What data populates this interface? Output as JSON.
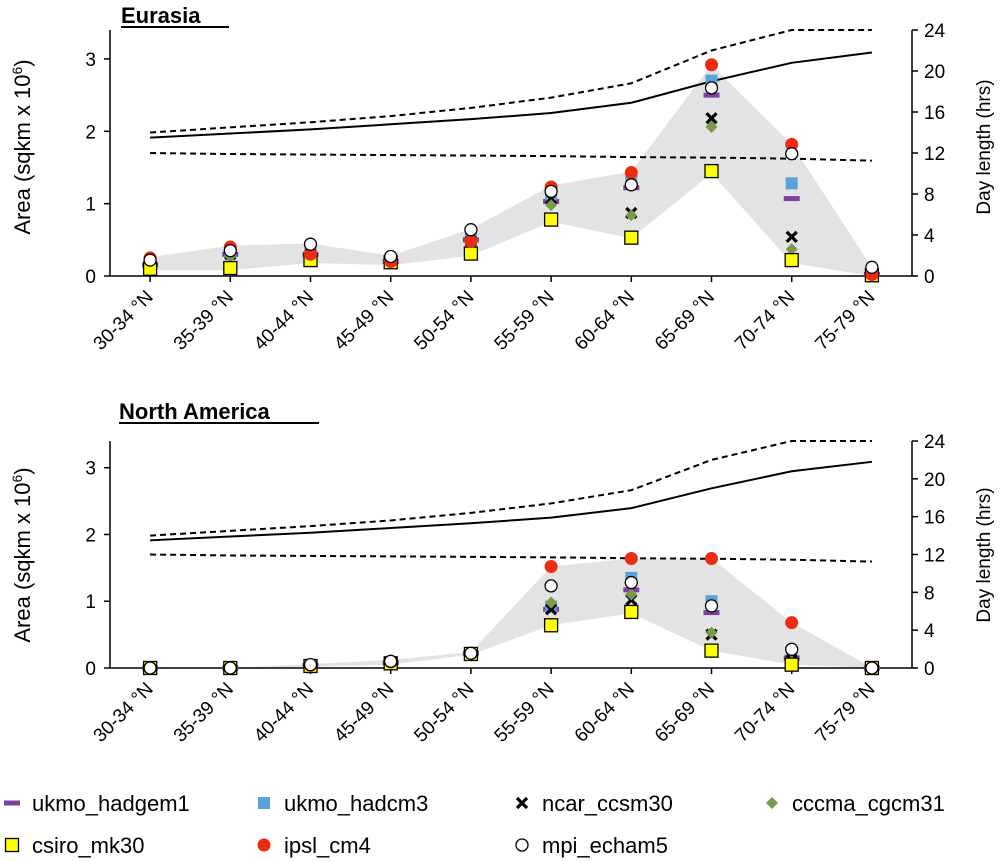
{
  "chart_data": [
    {
      "type": "scatter",
      "title": "Eurasia",
      "ylabel": "Area (sqkm x 10^6)",
      "ylabel_base": "Area (sqkm x 10",
      "ylabel_exp": "6",
      "ylabel_close": ")",
      "y2label": "Day length (hrs)",
      "ylim": [
        0,
        3.4
      ],
      "y2lim": [
        0,
        24
      ],
      "yticks": [
        "0",
        "1",
        "2",
        "3"
      ],
      "y2ticks": [
        "0",
        "4",
        "8",
        "12",
        "16",
        "20",
        "24"
      ],
      "categories": [
        "30-34 °N",
        "35-39 °N",
        "40-44 °N",
        "45-49 °N",
        "50-54 °N",
        "55-59 °N",
        "60-64 °N",
        "65-69 °N",
        "70-74 °N",
        "75-79 °N"
      ],
      "band": {
        "lower": [
          0.08,
          0.08,
          0.18,
          0.15,
          0.28,
          0.75,
          0.52,
          1.42,
          0.18,
          0.0
        ],
        "upper": [
          0.26,
          0.42,
          0.45,
          0.28,
          0.65,
          1.25,
          1.44,
          2.92,
          1.82,
          0.12
        ]
      },
      "series": [
        {
          "name": "ukmo_hadgem1",
          "marker": "dash",
          "color": "#7b3fa0",
          "values": [
            0.15,
            0.3,
            0.3,
            0.2,
            0.5,
            1.03,
            1.22,
            2.5,
            1.07,
            0.02
          ]
        },
        {
          "name": "ukmo_hadcm3",
          "marker": "square",
          "color": "#5aa0dc",
          "values": [
            0.2,
            0.33,
            0.35,
            0.22,
            0.6,
            1.13,
            1.32,
            2.7,
            1.28,
            0.03
          ]
        },
        {
          "name": "ncar_ccsm30",
          "marker": "x",
          "color": "#000000",
          "values": [
            0.15,
            0.3,
            0.3,
            0.2,
            0.48,
            1.07,
            0.87,
            2.18,
            0.54,
            0.02
          ]
        },
        {
          "name": "cccma_cgcm31",
          "marker": "diamond",
          "color": "#7a9a4a",
          "values": [
            0.14,
            0.27,
            0.28,
            0.2,
            0.44,
            0.98,
            0.84,
            2.06,
            0.37,
            0.02
          ]
        },
        {
          "name": "csiro_mk30",
          "marker": "square-outline",
          "color": "#ffff00",
          "values": [
            0.1,
            0.11,
            0.22,
            0.19,
            0.31,
            0.78,
            0.53,
            1.45,
            0.22,
            0.01
          ]
        },
        {
          "name": "ipsl_cm4",
          "marker": "dot",
          "color": "#ee2b10",
          "values": [
            0.25,
            0.4,
            0.3,
            0.2,
            0.48,
            1.23,
            1.43,
            2.92,
            1.82,
            0.02
          ]
        },
        {
          "name": "mpi_echam5",
          "marker": "circle-open",
          "color": "#ffffff",
          "values": [
            0.22,
            0.35,
            0.44,
            0.27,
            0.64,
            1.17,
            1.26,
            2.6,
            1.69,
            0.12
          ]
        }
      ],
      "day_length": {
        "upper_dashed": [
          14.0,
          14.5,
          15.0,
          15.6,
          16.4,
          17.4,
          18.8,
          22.0,
          24.0,
          24.0
        ],
        "solid": [
          13.5,
          13.9,
          14.3,
          14.8,
          15.3,
          15.9,
          16.9,
          19.0,
          20.8,
          21.8
        ],
        "lower_dashed": [
          12.0,
          11.9,
          11.85,
          11.8,
          11.75,
          11.7,
          11.6,
          11.55,
          11.45,
          11.25
        ]
      }
    },
    {
      "type": "scatter",
      "title": "North America",
      "ylabel": "Area (sqkm x 10^6)",
      "ylabel_base": "Area (sqkm x 10",
      "ylabel_exp": "6",
      "ylabel_close": ")",
      "y2label": "Day length (hrs)",
      "ylim": [
        0,
        3.4
      ],
      "y2lim": [
        0,
        24
      ],
      "yticks": [
        "0",
        "1",
        "2",
        "3"
      ],
      "y2ticks": [
        "0",
        "4",
        "8",
        "12",
        "16",
        "20",
        "24"
      ],
      "categories": [
        "30-34 °N",
        "35-39 °N",
        "40-44 °N",
        "45-49 °N",
        "50-54 °N",
        "55-59 °N",
        "60-64 °N",
        "65-69 °N",
        "70-74 °N",
        "75-79 °N"
      ],
      "band": {
        "lower": [
          0.0,
          0.0,
          0.02,
          0.05,
          0.2,
          0.64,
          0.82,
          0.26,
          0.05,
          0.0
        ],
        "upper": [
          0.0,
          0.0,
          0.06,
          0.12,
          0.24,
          1.52,
          1.64,
          1.64,
          0.68,
          0.01
        ]
      },
      "series": [
        {
          "name": "ukmo_hadgem1",
          "marker": "dash",
          "color": "#7b3fa0",
          "values": [
            0.0,
            0.0,
            0.04,
            0.08,
            0.22,
            0.88,
            1.17,
            0.83,
            0.15,
            0.0
          ]
        },
        {
          "name": "ukmo_hadcm3",
          "marker": "square",
          "color": "#5aa0dc",
          "values": [
            0.0,
            0.0,
            0.04,
            0.09,
            0.22,
            0.92,
            1.35,
            1.0,
            0.2,
            0.0
          ]
        },
        {
          "name": "ncar_ccsm30",
          "marker": "x",
          "color": "#000000",
          "values": [
            0.0,
            0.0,
            0.04,
            0.08,
            0.22,
            0.88,
            1.02,
            0.5,
            0.12,
            0.0
          ]
        },
        {
          "name": "cccma_cgcm31",
          "marker": "diamond",
          "color": "#7a9a4a",
          "values": [
            0.0,
            0.0,
            0.04,
            0.08,
            0.22,
            0.98,
            1.1,
            0.53,
            0.1,
            0.0
          ]
        },
        {
          "name": "csiro_mk30",
          "marker": "square-outline",
          "color": "#ffff00",
          "values": [
            0.0,
            0.0,
            0.03,
            0.07,
            0.21,
            0.64,
            0.84,
            0.26,
            0.05,
            0.0
          ]
        },
        {
          "name": "ipsl_cm4",
          "marker": "dot",
          "color": "#ee2b10",
          "values": [
            0.0,
            0.0,
            0.04,
            0.09,
            0.22,
            1.52,
            1.64,
            1.64,
            0.68,
            0.0
          ]
        },
        {
          "name": "mpi_echam5",
          "marker": "circle-open",
          "color": "#ffffff",
          "values": [
            0.0,
            0.0,
            0.05,
            0.1,
            0.22,
            1.23,
            1.28,
            0.93,
            0.28,
            0.0
          ]
        }
      ],
      "day_length": {
        "upper_dashed": [
          14.0,
          14.5,
          15.0,
          15.6,
          16.4,
          17.4,
          18.8,
          22.0,
          24.0,
          24.0
        ],
        "solid": [
          13.5,
          13.9,
          14.3,
          14.8,
          15.3,
          15.9,
          16.9,
          19.0,
          20.8,
          21.8
        ],
        "lower_dashed": [
          12.0,
          11.9,
          11.85,
          11.8,
          11.75,
          11.7,
          11.6,
          11.55,
          11.45,
          11.25
        ]
      }
    }
  ],
  "legend": [
    {
      "name": "ukmo_hadgem1",
      "marker": "dash",
      "color": "#7b3fa0"
    },
    {
      "name": "ukmo_hadcm3",
      "marker": "square",
      "color": "#5aa0dc"
    },
    {
      "name": "ncar_ccsm30",
      "marker": "x",
      "color": "#000000"
    },
    {
      "name": "cccma_cgcm31",
      "marker": "diamond",
      "color": "#7a9a4a"
    },
    {
      "name": "csiro_mk30",
      "marker": "square-outline",
      "color": "#ffff00"
    },
    {
      "name": "ipsl_cm4",
      "marker": "dot",
      "color": "#ee2b10"
    },
    {
      "name": "mpi_echam5",
      "marker": "circle-open",
      "color": "#ffffff"
    }
  ],
  "colors": {
    "band": "#e3e3e3",
    "axis": "#000000"
  }
}
